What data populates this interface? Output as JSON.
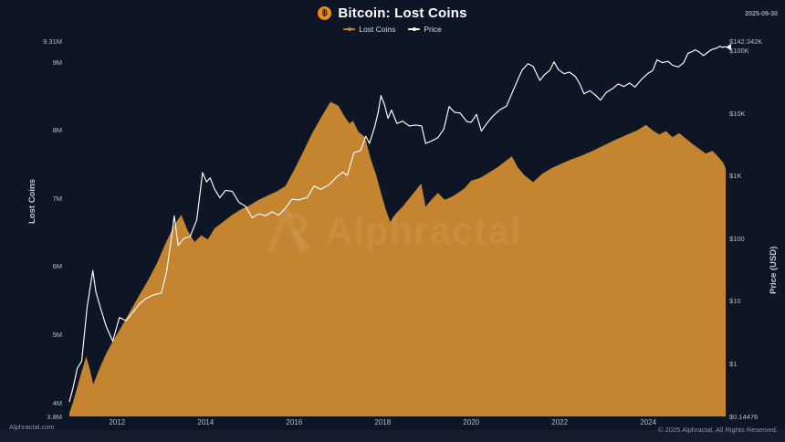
{
  "header": {
    "title": "Bitcoin: Lost Coins",
    "bitcoin_icon": "฿",
    "date": "2025-09-30"
  },
  "legend": [
    {
      "label": "Lost Coins",
      "color": "#c5842f"
    },
    {
      "label": "Price",
      "color": "#ffffff"
    }
  ],
  "watermark": {
    "text": "Alphractal"
  },
  "footer": {
    "left": "Alphractal.com",
    "right": "© 2025 Alphractal. All Rights Reserved."
  },
  "colors": {
    "background": "#0e1625",
    "lost_coins_fill": "#c5842f",
    "price_line": "#ffffff",
    "tick_text": "#b4bdc9"
  },
  "axes": {
    "x": {
      "domain": [
        2010.9,
        2025.75
      ],
      "ticks": [
        {
          "label": "2012",
          "value": 2012
        },
        {
          "label": "2014",
          "value": 2014
        },
        {
          "label": "2016",
          "value": 2016
        },
        {
          "label": "2018",
          "value": 2018
        },
        {
          "label": "2020",
          "value": 2020
        },
        {
          "label": "2022",
          "value": 2022
        },
        {
          "label": "2024",
          "value": 2024
        }
      ]
    },
    "left": {
      "title": "Lost Coins",
      "scale": "linear",
      "unit": "millions of BTC",
      "domain": [
        3.8,
        9.31
      ],
      "ticks": [
        {
          "label": "9.31M",
          "value": 9.31
        },
        {
          "label": "9M",
          "value": 9
        },
        {
          "label": "8M",
          "value": 8
        },
        {
          "label": "7M",
          "value": 7
        },
        {
          "label": "6M",
          "value": 6
        },
        {
          "label": "5M",
          "value": 5
        },
        {
          "label": "4M",
          "value": 4
        },
        {
          "label": "3.8M",
          "value": 3.8
        }
      ]
    },
    "right": {
      "title": "Price (USD)",
      "scale": "log",
      "unit": "USD",
      "domain": [
        0.14476,
        142342
      ],
      "ticks": [
        {
          "label": "$142.342K",
          "value": 142342
        },
        {
          "label": "$100K",
          "value": 100000
        },
        {
          "label": "$10K",
          "value": 10000
        },
        {
          "label": "$1K",
          "value": 1000
        },
        {
          "label": "$100",
          "value": 100
        },
        {
          "label": "$10",
          "value": 10
        },
        {
          "label": "$1",
          "value": 1
        },
        {
          "label": "$0.14476",
          "value": 0.14476
        }
      ]
    }
  },
  "chart_data": {
    "type": "area+line",
    "title": "Bitcoin: Lost Coins",
    "x_unit": "year (decimal)",
    "grid": false,
    "legend_position": "top-center",
    "x_range": [
      2010.9,
      2025.75
    ],
    "left_range_millions": [
      3.8,
      9.31
    ],
    "right_range_usd_log": [
      0.14476,
      142342
    ],
    "series": [
      {
        "name": "Lost Coins",
        "type": "area",
        "axis": "left",
        "unit": "millions of BTC",
        "color": "#c5842f",
        "points": [
          [
            2010.92,
            3.85
          ],
          [
            2011.0,
            4.0
          ],
          [
            2011.15,
            4.35
          ],
          [
            2011.3,
            4.68
          ],
          [
            2011.38,
            4.5
          ],
          [
            2011.46,
            4.27
          ],
          [
            2011.6,
            4.5
          ],
          [
            2011.75,
            4.72
          ],
          [
            2011.9,
            4.9
          ],
          [
            2012.1,
            5.12
          ],
          [
            2012.3,
            5.35
          ],
          [
            2012.5,
            5.58
          ],
          [
            2012.7,
            5.8
          ],
          [
            2012.9,
            6.05
          ],
          [
            2013.1,
            6.35
          ],
          [
            2013.3,
            6.62
          ],
          [
            2013.45,
            6.76
          ],
          [
            2013.6,
            6.52
          ],
          [
            2013.75,
            6.36
          ],
          [
            2013.9,
            6.46
          ],
          [
            2014.05,
            6.4
          ],
          [
            2014.2,
            6.56
          ],
          [
            2014.4,
            6.66
          ],
          [
            2014.6,
            6.76
          ],
          [
            2014.8,
            6.84
          ],
          [
            2015.0,
            6.9
          ],
          [
            2015.2,
            6.98
          ],
          [
            2015.4,
            7.04
          ],
          [
            2015.6,
            7.1
          ],
          [
            2015.8,
            7.18
          ],
          [
            2016.0,
            7.42
          ],
          [
            2016.2,
            7.68
          ],
          [
            2016.4,
            7.95
          ],
          [
            2016.6,
            8.18
          ],
          [
            2016.82,
            8.42
          ],
          [
            2017.0,
            8.36
          ],
          [
            2017.12,
            8.22
          ],
          [
            2017.25,
            8.1
          ],
          [
            2017.33,
            8.14
          ],
          [
            2017.45,
            7.98
          ],
          [
            2017.6,
            7.9
          ],
          [
            2017.72,
            7.6
          ],
          [
            2017.85,
            7.35
          ],
          [
            2017.97,
            7.06
          ],
          [
            2018.08,
            6.82
          ],
          [
            2018.17,
            6.66
          ],
          [
            2018.3,
            6.78
          ],
          [
            2018.45,
            6.88
          ],
          [
            2018.6,
            7.0
          ],
          [
            2018.75,
            7.12
          ],
          [
            2018.87,
            7.22
          ],
          [
            2018.97,
            6.88
          ],
          [
            2019.1,
            6.98
          ],
          [
            2019.25,
            7.08
          ],
          [
            2019.4,
            6.98
          ],
          [
            2019.55,
            7.02
          ],
          [
            2019.7,
            7.08
          ],
          [
            2019.85,
            7.15
          ],
          [
            2020.0,
            7.26
          ],
          [
            2020.2,
            7.3
          ],
          [
            2020.4,
            7.38
          ],
          [
            2020.6,
            7.46
          ],
          [
            2020.8,
            7.56
          ],
          [
            2020.92,
            7.62
          ],
          [
            2021.05,
            7.46
          ],
          [
            2021.2,
            7.34
          ],
          [
            2021.4,
            7.24
          ],
          [
            2021.6,
            7.36
          ],
          [
            2021.8,
            7.44
          ],
          [
            2022.0,
            7.5
          ],
          [
            2022.25,
            7.57
          ],
          [
            2022.5,
            7.63
          ],
          [
            2022.75,
            7.7
          ],
          [
            2023.0,
            7.78
          ],
          [
            2023.25,
            7.86
          ],
          [
            2023.5,
            7.93
          ],
          [
            2023.75,
            8.0
          ],
          [
            2023.95,
            8.08
          ],
          [
            2024.1,
            8.0
          ],
          [
            2024.25,
            7.94
          ],
          [
            2024.4,
            7.99
          ],
          [
            2024.55,
            7.9
          ],
          [
            2024.7,
            7.96
          ],
          [
            2024.85,
            7.88
          ],
          [
            2025.0,
            7.8
          ],
          [
            2025.15,
            7.73
          ],
          [
            2025.3,
            7.66
          ],
          [
            2025.45,
            7.7
          ],
          [
            2025.6,
            7.6
          ],
          [
            2025.7,
            7.52
          ],
          [
            2025.75,
            7.44
          ]
        ]
      },
      {
        "name": "Price",
        "type": "line",
        "axis": "right",
        "unit": "USD",
        "color": "#ffffff",
        "points": [
          [
            2010.92,
            0.25
          ],
          [
            2011.0,
            0.4
          ],
          [
            2011.1,
            0.85
          ],
          [
            2011.2,
            1.1
          ],
          [
            2011.32,
            8
          ],
          [
            2011.45,
            31
          ],
          [
            2011.52,
            14
          ],
          [
            2011.62,
            8
          ],
          [
            2011.75,
            4
          ],
          [
            2011.9,
            2.3
          ],
          [
            2012.05,
            5.5
          ],
          [
            2012.2,
            4.9
          ],
          [
            2012.35,
            6.6
          ],
          [
            2012.5,
            9
          ],
          [
            2012.65,
            11
          ],
          [
            2012.8,
            12.5
          ],
          [
            2013.0,
            13.5
          ],
          [
            2013.12,
            30
          ],
          [
            2013.22,
            95
          ],
          [
            2013.29,
            230
          ],
          [
            2013.38,
            78
          ],
          [
            2013.5,
            100
          ],
          [
            2013.65,
            108
          ],
          [
            2013.8,
            200
          ],
          [
            2013.93,
            1130
          ],
          [
            2014.02,
            800
          ],
          [
            2014.1,
            930
          ],
          [
            2014.2,
            620
          ],
          [
            2014.32,
            450
          ],
          [
            2014.45,
            590
          ],
          [
            2014.6,
            570
          ],
          [
            2014.75,
            380
          ],
          [
            2014.9,
            330
          ],
          [
            2015.05,
            215
          ],
          [
            2015.2,
            248
          ],
          [
            2015.35,
            232
          ],
          [
            2015.5,
            268
          ],
          [
            2015.65,
            236
          ],
          [
            2015.8,
            305
          ],
          [
            2015.95,
            425
          ],
          [
            2016.1,
            415
          ],
          [
            2016.3,
            455
          ],
          [
            2016.45,
            690
          ],
          [
            2016.6,
            610
          ],
          [
            2016.8,
            735
          ],
          [
            2016.95,
            950
          ],
          [
            2017.1,
            1150
          ],
          [
            2017.2,
            1020
          ],
          [
            2017.35,
            2350
          ],
          [
            2017.5,
            2550
          ],
          [
            2017.62,
            4300
          ],
          [
            2017.7,
            3300
          ],
          [
            2017.82,
            6100
          ],
          [
            2017.9,
            10500
          ],
          [
            2017.96,
            19200
          ],
          [
            2018.04,
            13800
          ],
          [
            2018.12,
            8300
          ],
          [
            2018.2,
            11300
          ],
          [
            2018.32,
            6900
          ],
          [
            2018.45,
            7500
          ],
          [
            2018.6,
            6300
          ],
          [
            2018.75,
            6500
          ],
          [
            2018.88,
            6300
          ],
          [
            2018.97,
            3300
          ],
          [
            2019.1,
            3600
          ],
          [
            2019.25,
            4100
          ],
          [
            2019.38,
            5600
          ],
          [
            2019.5,
            12800
          ],
          [
            2019.62,
            10400
          ],
          [
            2019.75,
            10100
          ],
          [
            2019.9,
            7400
          ],
          [
            2020.0,
            7200
          ],
          [
            2020.12,
            9600
          ],
          [
            2020.23,
            5200
          ],
          [
            2020.35,
            6900
          ],
          [
            2020.5,
            9200
          ],
          [
            2020.65,
            11400
          ],
          [
            2020.8,
            13100
          ],
          [
            2020.95,
            23500
          ],
          [
            2021.05,
            34000
          ],
          [
            2021.15,
            49000
          ],
          [
            2021.28,
            62000
          ],
          [
            2021.4,
            56000
          ],
          [
            2021.55,
            33500
          ],
          [
            2021.65,
            41000
          ],
          [
            2021.78,
            49000
          ],
          [
            2021.87,
            66500
          ],
          [
            2021.97,
            50000
          ],
          [
            2022.1,
            43000
          ],
          [
            2022.22,
            45500
          ],
          [
            2022.35,
            39000
          ],
          [
            2022.45,
            30000
          ],
          [
            2022.55,
            20500
          ],
          [
            2022.68,
            23000
          ],
          [
            2022.8,
            19800
          ],
          [
            2022.92,
            16200
          ],
          [
            2023.05,
            21500
          ],
          [
            2023.2,
            25000
          ],
          [
            2023.32,
            29500
          ],
          [
            2023.45,
            26800
          ],
          [
            2023.58,
            30500
          ],
          [
            2023.7,
            26200
          ],
          [
            2023.85,
            35000
          ],
          [
            2024.0,
            43800
          ],
          [
            2024.1,
            48000
          ],
          [
            2024.2,
            71500
          ],
          [
            2024.32,
            64500
          ],
          [
            2024.45,
            67500
          ],
          [
            2024.55,
            58500
          ],
          [
            2024.68,
            55000
          ],
          [
            2024.8,
            64000
          ],
          [
            2024.9,
            91000
          ],
          [
            2025.0,
            97000
          ],
          [
            2025.06,
            103500
          ],
          [
            2025.15,
            95500
          ],
          [
            2025.25,
            83500
          ],
          [
            2025.35,
            95000
          ],
          [
            2025.45,
            105500
          ],
          [
            2025.55,
            110000
          ],
          [
            2025.62,
            118500
          ],
          [
            2025.68,
            112000
          ],
          [
            2025.72,
            116500
          ],
          [
            2025.75,
            114000
          ]
        ]
      }
    ]
  }
}
